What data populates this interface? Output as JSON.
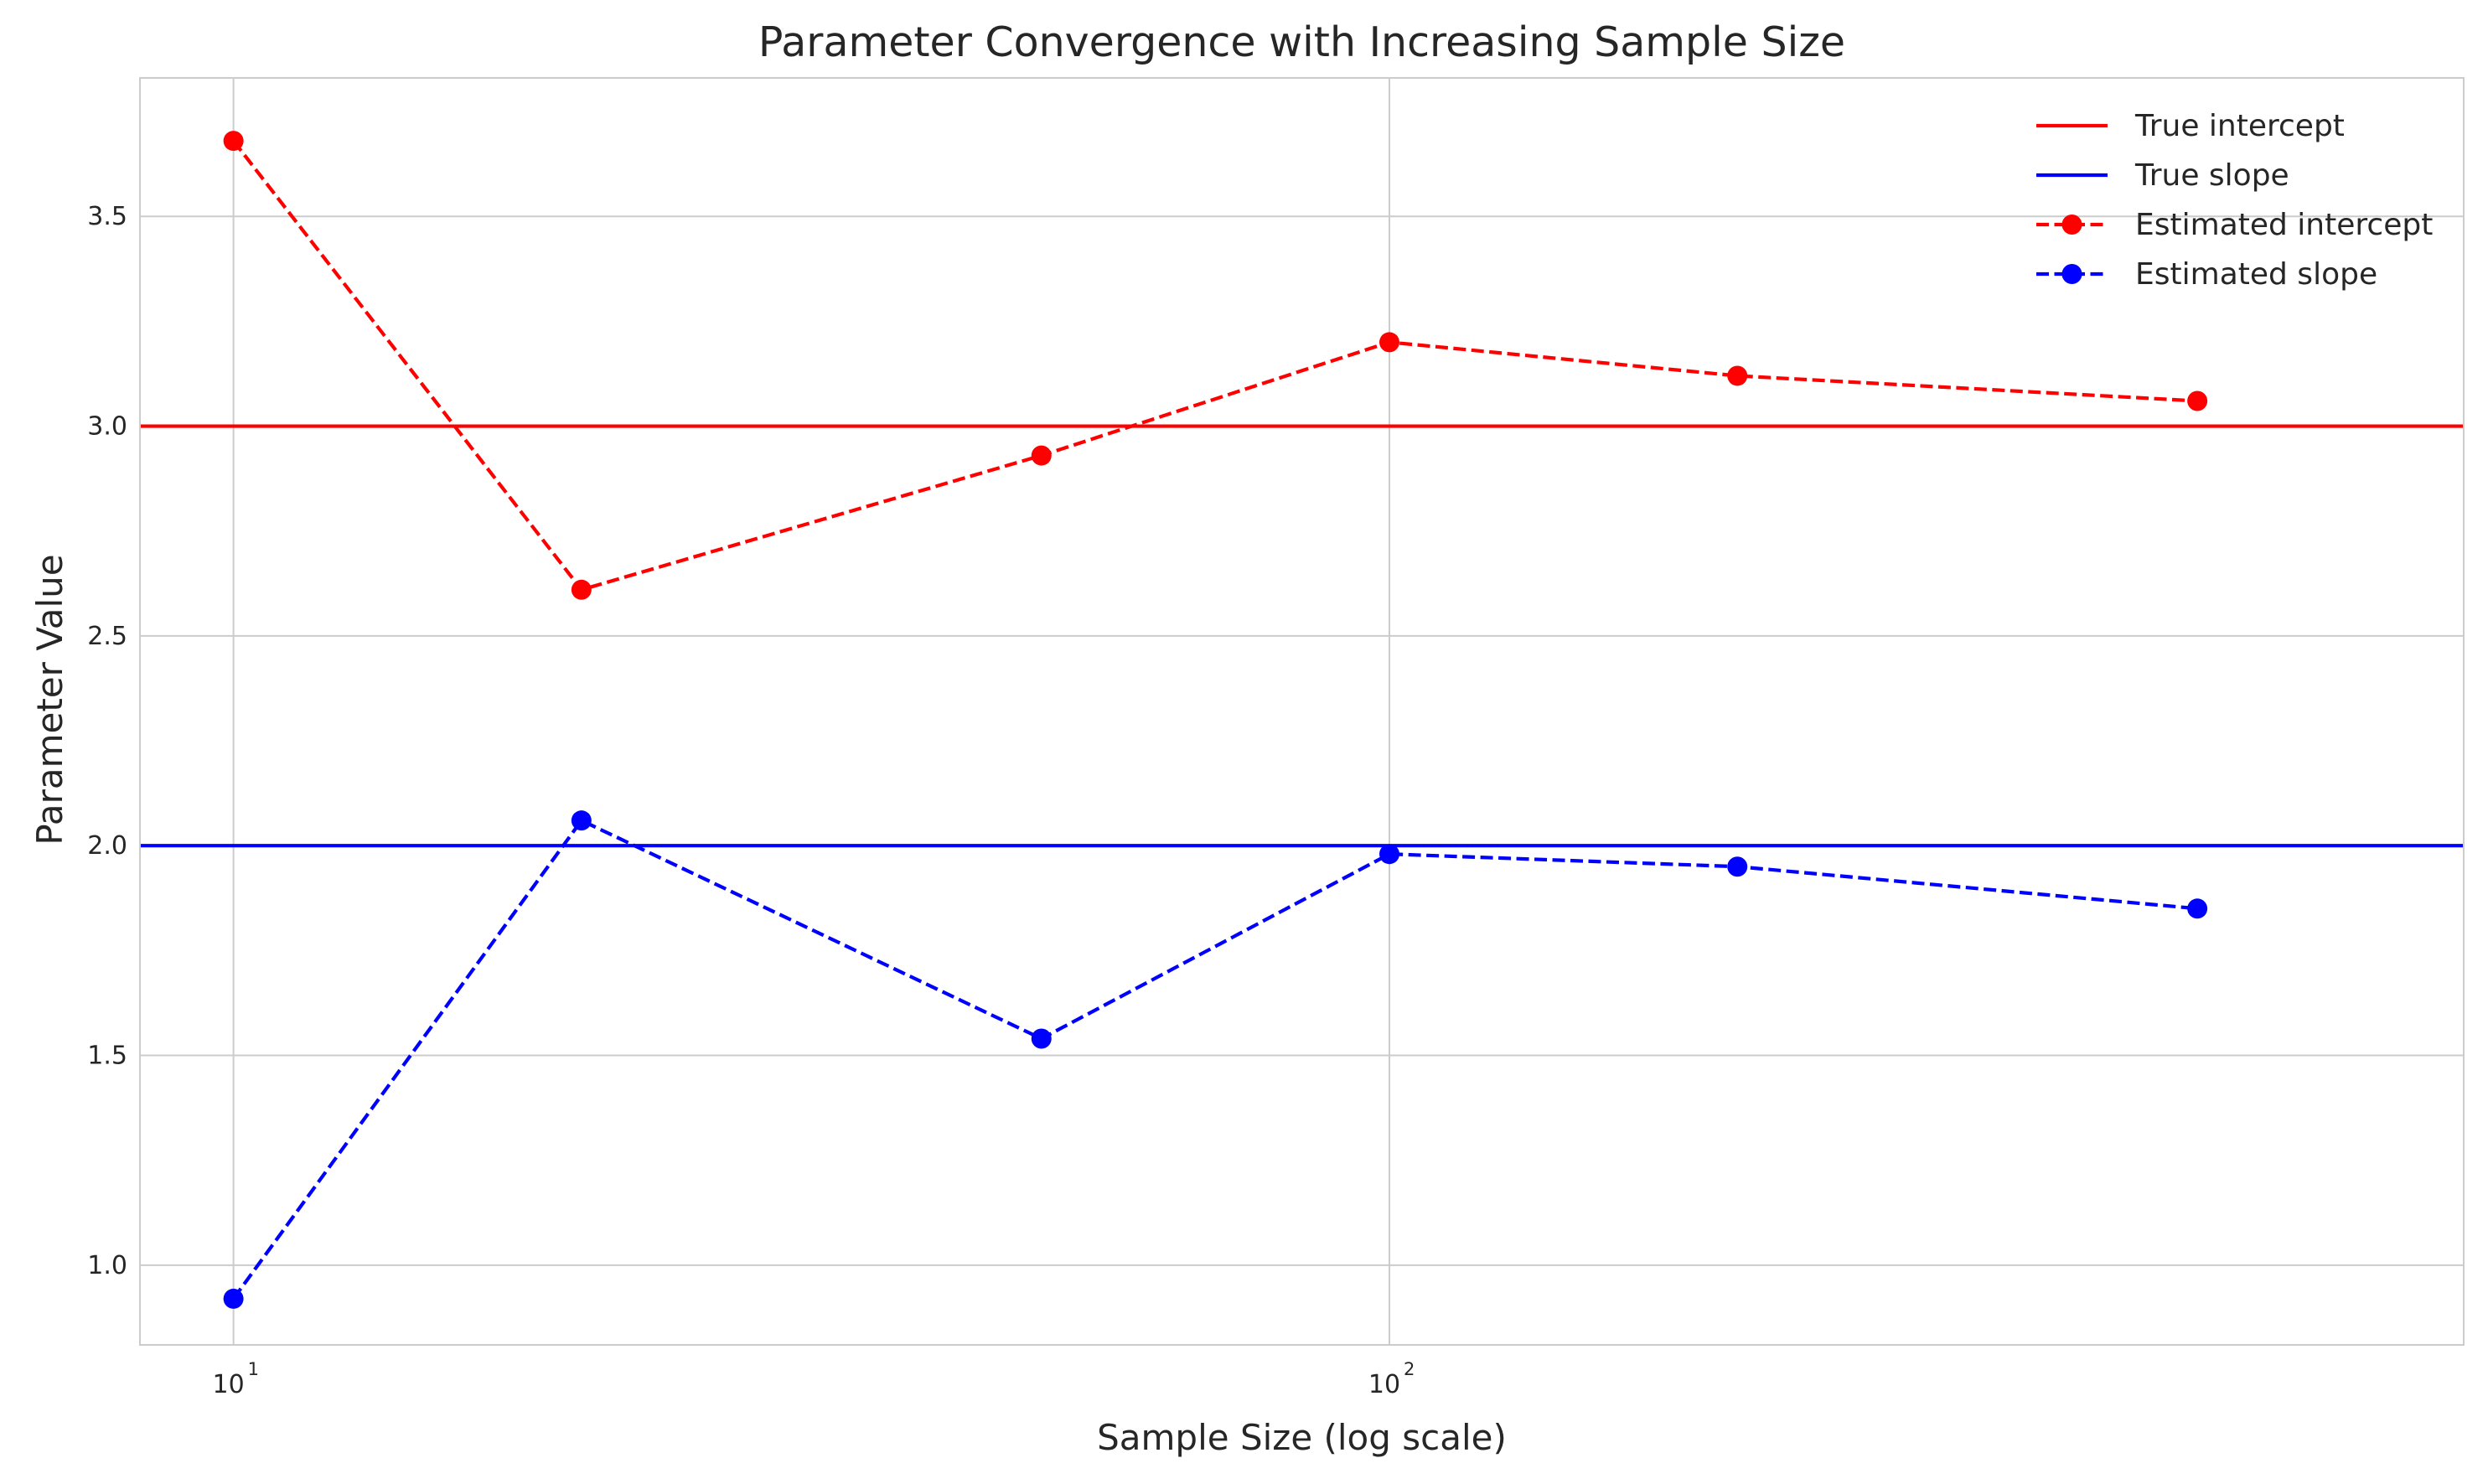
{
  "chart_data": {
    "type": "line",
    "title": "Parameter Convergence with Increasing Sample Size",
    "xlabel": "Sample Size (log scale)",
    "ylabel": "Parameter Value",
    "x_scale": "log",
    "xlim": [
      8.3,
      850
    ],
    "ylim": [
      0.81,
      3.83
    ],
    "grid": true,
    "legend_position": "top-right",
    "x_ticks": [
      {
        "value": 10,
        "base": "10",
        "exp": "1"
      },
      {
        "value": 100,
        "base": "10",
        "exp": "2"
      }
    ],
    "y_ticks": [
      {
        "value": 1.0,
        "label": "1.0"
      },
      {
        "value": 1.5,
        "label": "1.5"
      },
      {
        "value": 2.0,
        "label": "2.0"
      },
      {
        "value": 2.5,
        "label": "2.5"
      },
      {
        "value": 3.0,
        "label": "3.0"
      },
      {
        "value": 3.5,
        "label": "3.5"
      }
    ],
    "x": [
      10,
      20,
      50,
      100,
      200,
      500
    ],
    "series": [
      {
        "name": "True intercept",
        "kind": "hline",
        "value": 3.0,
        "color": "#ff0000",
        "style": "solid"
      },
      {
        "name": "True slope",
        "kind": "hline",
        "value": 2.0,
        "color": "#0000ff",
        "style": "solid"
      },
      {
        "name": "Estimated intercept",
        "kind": "line",
        "values": [
          3.68,
          2.61,
          2.93,
          3.2,
          3.12,
          3.06
        ],
        "color": "#ff0000",
        "style": "dashed",
        "marker": "circle"
      },
      {
        "name": "Estimated slope",
        "kind": "line",
        "values": [
          0.92,
          2.06,
          1.54,
          1.98,
          1.95,
          1.85
        ],
        "color": "#0000ff",
        "style": "dashed",
        "marker": "circle"
      }
    ]
  }
}
